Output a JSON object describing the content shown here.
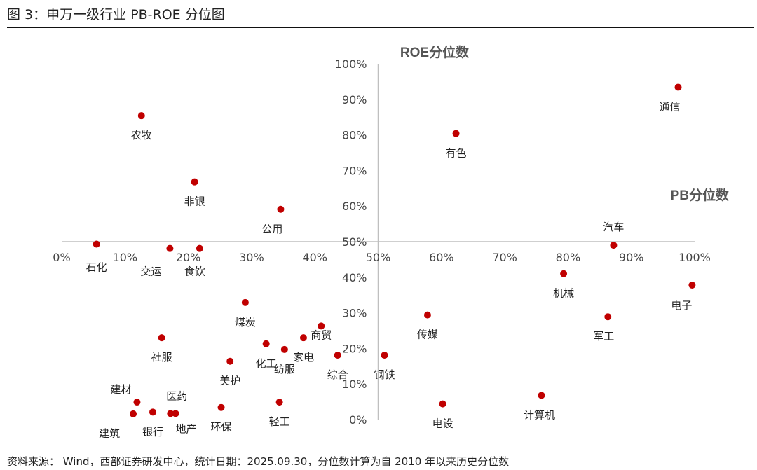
{
  "figure": {
    "title": "图 3：申万一级行业 PB-ROE 分位图",
    "source": "资料来源： Wind，西部证券研发中心，统计日期：2025.09.30，分位数计算为自 2010 年以来历史分位数"
  },
  "chart_data": {
    "type": "scatter",
    "title": "申万一级行业 PB-ROE 分位图",
    "xlabel": "PB分位数",
    "ylabel": "ROE分位数",
    "xlim": [
      0,
      100
    ],
    "ylim": [
      0,
      100
    ],
    "x_ticks": [
      "0%",
      "10%",
      "20%",
      "30%",
      "40%",
      "50%",
      "60%",
      "70%",
      "80%",
      "90%",
      "100%"
    ],
    "y_ticks": [
      "0%",
      "10%",
      "20%",
      "30%",
      "40%",
      "50%",
      "60%",
      "70%",
      "80%",
      "90%",
      "100%"
    ],
    "axes_cross_at": [
      50,
      50
    ],
    "colors": {
      "point": "#c00000",
      "axis": "#bfbfbf"
    },
    "points": [
      {
        "name": "通信",
        "x": 97.4,
        "y": 93.4
      },
      {
        "name": "有色",
        "x": 62.3,
        "y": 80.4
      },
      {
        "name": "农牧",
        "x": 12.6,
        "y": 85.4
      },
      {
        "name": "非银",
        "x": 21.0,
        "y": 66.8
      },
      {
        "name": "公用",
        "x": 34.6,
        "y": 59.1
      },
      {
        "name": "汽车",
        "x": 87.2,
        "y": 49.0
      },
      {
        "name": "石化",
        "x": 5.5,
        "y": 49.3
      },
      {
        "name": "交运",
        "x": 17.1,
        "y": 48.1
      },
      {
        "name": "食饮",
        "x": 21.8,
        "y": 48.1
      },
      {
        "name": "机械",
        "x": 79.3,
        "y": 41.0
      },
      {
        "name": "电子",
        "x": 99.6,
        "y": 37.8
      },
      {
        "name": "煤炭",
        "x": 29.0,
        "y": 32.9
      },
      {
        "name": "传媒",
        "x": 57.8,
        "y": 29.4
      },
      {
        "name": "军工",
        "x": 86.3,
        "y": 28.9
      },
      {
        "name": "社服",
        "x": 15.8,
        "y": 23.0
      },
      {
        "name": "商贸",
        "x": 41.0,
        "y": 26.3
      },
      {
        "name": "家电",
        "x": 38.2,
        "y": 23.0
      },
      {
        "name": "化工",
        "x": 32.3,
        "y": 21.3
      },
      {
        "name": "纺服",
        "x": 35.2,
        "y": 19.7
      },
      {
        "name": "综合",
        "x": 43.6,
        "y": 18.1
      },
      {
        "name": "钢铁",
        "x": 51.0,
        "y": 18.1
      },
      {
        "name": "美护",
        "x": 26.6,
        "y": 16.4
      },
      {
        "name": "建材",
        "x": 11.9,
        "y": 4.9
      },
      {
        "name": "医药",
        "x": 17.2,
        "y": 1.7
      },
      {
        "name": "地产",
        "x": 18.0,
        "y": 1.7
      },
      {
        "name": "银行",
        "x": 14.4,
        "y": 2.1
      },
      {
        "name": "建筑",
        "x": 11.3,
        "y": 1.6
      },
      {
        "name": "环保",
        "x": 25.2,
        "y": 3.4
      },
      {
        "name": "轻工",
        "x": 34.4,
        "y": 4.9
      },
      {
        "name": "电设",
        "x": 60.2,
        "y": 4.4
      },
      {
        "name": "计算机",
        "x": 75.8,
        "y": 6.8
      }
    ]
  }
}
